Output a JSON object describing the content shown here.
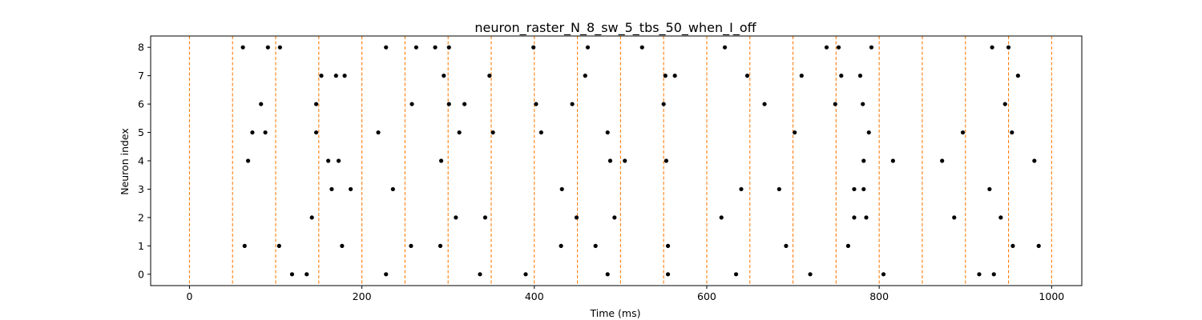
{
  "chart_data": {
    "type": "scatter",
    "title": "neuron_raster_N_8_sw_5_tbs_50_when_I_off",
    "xlabel": "Time (ms)",
    "ylabel": "Neuron index",
    "xlim": [
      -45,
      1035
    ],
    "ylim": [
      -0.4,
      8.4
    ],
    "xticks": [
      0,
      200,
      400,
      600,
      800,
      1000
    ],
    "yticks": [
      0,
      1,
      2,
      3,
      4,
      5,
      6,
      7,
      8
    ],
    "grid": false,
    "point_color": "#000000",
    "vline_color": "#ff7f0e",
    "vlines": [
      0,
      50,
      100,
      150,
      200,
      250,
      300,
      350,
      400,
      450,
      500,
      550,
      600,
      650,
      700,
      750,
      800,
      850,
      900,
      950,
      1000
    ],
    "series": [
      {
        "neuron": 8,
        "spike_times": [
          62,
          91,
          105,
          228,
          263,
          285,
          301,
          399,
          462,
          525,
          621,
          739,
          753,
          791,
          931,
          950
        ]
      },
      {
        "neuron": 7,
        "spike_times": [
          153,
          170,
          180,
          295,
          348,
          459,
          552,
          563,
          647,
          710,
          756,
          778,
          961
        ]
      },
      {
        "neuron": 6,
        "spike_times": [
          83,
          147,
          258,
          301,
          319,
          402,
          444,
          550,
          667,
          749,
          781,
          946
        ]
      },
      {
        "neuron": 5,
        "spike_times": [
          73,
          88,
          147,
          219,
          313,
          352,
          408,
          485,
          702,
          788,
          897,
          954
        ]
      },
      {
        "neuron": 4,
        "spike_times": [
          68,
          161,
          173,
          292,
          488,
          505,
          553,
          782,
          816,
          873,
          980
        ]
      },
      {
        "neuron": 3,
        "spike_times": [
          165,
          187,
          236,
          432,
          640,
          684,
          771,
          782,
          928
        ]
      },
      {
        "neuron": 2,
        "spike_times": [
          142,
          309,
          343,
          449,
          493,
          617,
          771,
          785,
          887,
          941
        ]
      },
      {
        "neuron": 1,
        "spike_times": [
          64,
          104,
          177,
          257,
          291,
          431,
          471,
          555,
          692,
          764,
          955,
          985
        ]
      },
      {
        "neuron": 0,
        "spike_times": [
          119,
          136,
          228,
          337,
          390,
          485,
          555,
          634,
          720,
          805,
          916,
          933
        ]
      }
    ]
  }
}
